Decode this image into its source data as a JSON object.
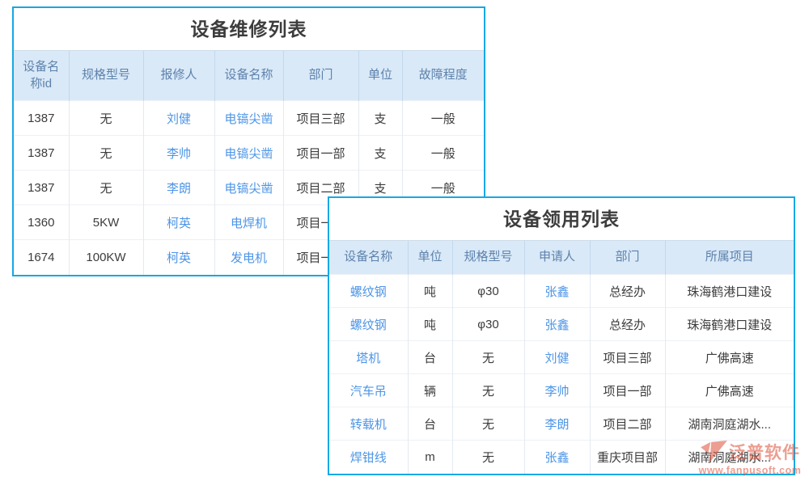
{
  "colors": {
    "table_border": "#17a8e4",
    "header_bg": "#d9e9f8",
    "header_text": "#5e82ab",
    "body_text": "#3c3c3c",
    "link_text": "#4d95e6",
    "watermark": "#dd4f38"
  },
  "repair": {
    "title": "设备维修列表",
    "columns": [
      "设备名称id",
      "规格型号",
      "报修人",
      "设备名称",
      "部门",
      "单位",
      "故障程度"
    ],
    "link_columns": [
      2,
      3
    ],
    "rows": [
      [
        "1387",
        "无",
        "刘健",
        "电镐尖凿",
        "项目三部",
        "支",
        "一般"
      ],
      [
        "1387",
        "无",
        "李帅",
        "电镐尖凿",
        "项目一部",
        "支",
        "一般"
      ],
      [
        "1387",
        "无",
        "李朗",
        "电镐尖凿",
        "项目二部",
        "支",
        "一般"
      ],
      [
        "1360",
        "5KW",
        "柯英",
        "电焊机",
        "项目一部",
        "",
        ""
      ],
      [
        "1674",
        "100KW",
        "柯英",
        "发电机",
        "项目一部",
        "",
        ""
      ]
    ]
  },
  "requisition": {
    "title": "设备领用列表",
    "columns": [
      "设备名称",
      "单位",
      "规格型号",
      "申请人",
      "部门",
      "所属项目"
    ],
    "link_columns": [
      0,
      3
    ],
    "rows": [
      [
        "螺纹钢",
        "吨",
        "φ30",
        "张鑫",
        "总经办",
        "珠海鹤港口建设"
      ],
      [
        "螺纹钢",
        "吨",
        "φ30",
        "张鑫",
        "总经办",
        "珠海鹤港口建设"
      ],
      [
        "塔机",
        "台",
        "无",
        "刘健",
        "项目三部",
        "广佛高速"
      ],
      [
        "汽车吊",
        "辆",
        "无",
        "李帅",
        "项目一部",
        "广佛高速"
      ],
      [
        "转载机",
        "台",
        "无",
        "李朗",
        "项目二部",
        "湖南洞庭湖水..."
      ],
      [
        "焊钳线",
        "m",
        "无",
        "张鑫",
        "重庆项目部",
        "湖南洞庭湖水..."
      ]
    ]
  },
  "watermark": {
    "brand": "泛普软件",
    "url": "www.fanpusoft.com"
  }
}
